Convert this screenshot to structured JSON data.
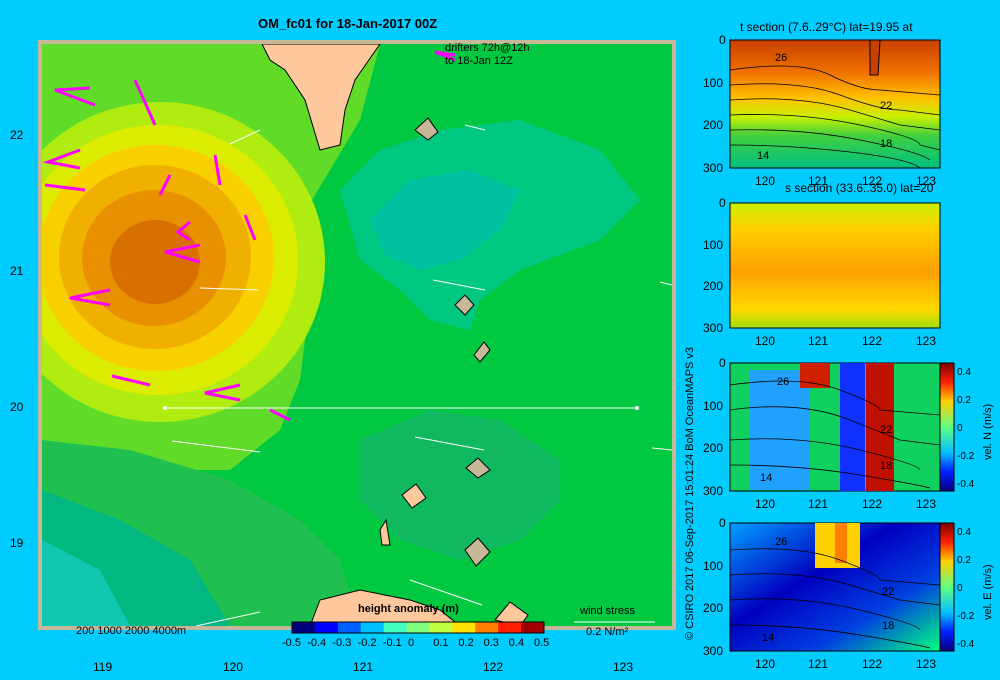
{
  "title": "OM_fc01 for 18-Jan-2017 00Z",
  "drifters": {
    "line1": "drifters 72h@12h",
    "line2": "to 18-Jan 12Z"
  },
  "main_map": {
    "x_ticks": [
      "119",
      "120",
      "121",
      "122",
      "123"
    ],
    "y_ticks": [
      "22",
      "21",
      "20",
      "19"
    ],
    "depth_legend": "200  1000  2000  4000m",
    "wind_stress_label": "wind stress",
    "wind_stress_scale": "0.2 N/m²"
  },
  "colorbar": {
    "title": "height anomaly (m)",
    "ticks": [
      "-0.5",
      "-0.4",
      "-0.3",
      "-0.2",
      "-0.1",
      "0",
      "0.1",
      "0.2",
      "0.3",
      "0.4",
      "0.5"
    ],
    "colors": [
      "#00007f",
      "#0000ff",
      "#0060ff",
      "#00c0ff",
      "#40ffc0",
      "#80ff80",
      "#c0ff40",
      "#ffe000",
      "#ff8000",
      "#ff2000",
      "#a00000"
    ]
  },
  "credit": "© CSIRO 2017   06-Sep-2017 15:01:24 BoM OceanMAPS v3",
  "panels": [
    {
      "id": "t-section",
      "title": "t section (7.6..29°C) lat=19.95 at",
      "y_ticks": [
        "0",
        "100",
        "200",
        "300"
      ],
      "x_ticks": [
        "120",
        "121",
        "122",
        "123"
      ],
      "contours": [
        "26",
        "22",
        "18",
        "14"
      ]
    },
    {
      "id": "s-section",
      "title": "s section (33.6..35.0) lat=20",
      "y_ticks": [
        "0",
        "100",
        "200",
        "300"
      ],
      "x_ticks": [
        "120",
        "121",
        "122",
        "123"
      ]
    },
    {
      "id": "vel-n",
      "title": "",
      "cbar_label": "vel. N (m/s)",
      "cbar_ticks": [
        "0.4",
        "0.2",
        "0",
        "-0.2",
        "-0.4"
      ],
      "y_ticks": [
        "0",
        "100",
        "200",
        "300"
      ],
      "x_ticks": [
        "120",
        "121",
        "122",
        "123"
      ],
      "contours": [
        "26",
        "22",
        "18",
        "14"
      ]
    },
    {
      "id": "vel-e",
      "title": "",
      "cbar_label": "vel. E (m/s)",
      "cbar_ticks": [
        "0.4",
        "0.2",
        "0",
        "-0.2",
        "-0.4"
      ],
      "y_ticks": [
        "0",
        "100",
        "200",
        "300"
      ],
      "x_ticks": [
        "120",
        "121",
        "122",
        "123"
      ],
      "contours": [
        "26",
        "22",
        "18",
        "14"
      ]
    }
  ]
}
